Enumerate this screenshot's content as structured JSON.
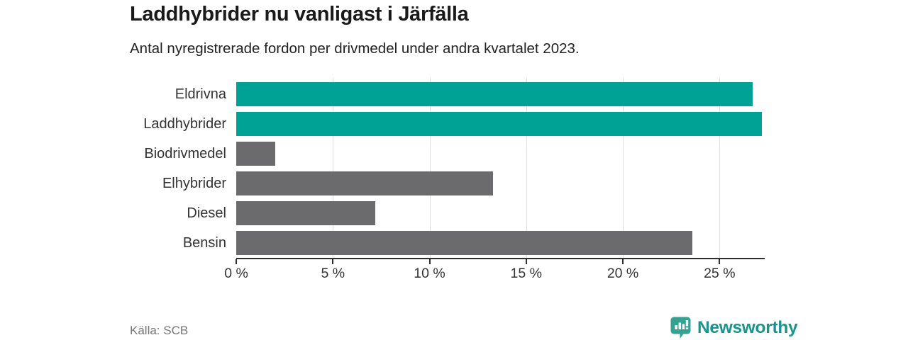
{
  "header": {
    "title": "Laddhybrider nu vanligast i Järfälla",
    "subtitle": "Antal nyregistrerade fordon per drivmedel under andra kvartalet 2023."
  },
  "chart_data": {
    "type": "bar",
    "orientation": "horizontal",
    "title": "Laddhybrider nu vanligast i Järfälla",
    "subtitle": "Antal nyregistrerade fordon per drivmedel under andra kvartalet 2023.",
    "categories": [
      "Eldrivna",
      "Laddhybrider",
      "Biodrivmedel",
      "Elhybrider",
      "Diesel",
      "Bensin"
    ],
    "values": [
      26.7,
      27.2,
      2.0,
      13.3,
      7.2,
      23.6
    ],
    "unit": "%",
    "bar_colors": [
      "#00a296",
      "#00a296",
      "#6b6b6e",
      "#6b6b6e",
      "#6b6b6e",
      "#6b6b6e"
    ],
    "highlight_color": "#00a296",
    "default_color": "#6b6b6e",
    "x_ticks": [
      0,
      5,
      10,
      15,
      20,
      25
    ],
    "x_tick_labels": [
      "0 %",
      "5 %",
      "10 %",
      "15 %",
      "20 %",
      "25 %"
    ],
    "xlim": [
      0,
      27.3
    ],
    "grid": true,
    "legend": false,
    "xlabel": "",
    "ylabel": ""
  },
  "footer": {
    "source": "Källa: SCB",
    "brand": "Newsworthy"
  },
  "colors": {
    "teal_bar": "#00a296",
    "gray_bar": "#6b6b6e",
    "gridline": "#e1e1e1",
    "axis_line": "#2e2e2e",
    "title_text": "#1a1a1a",
    "label_text": "#333333",
    "source_text": "#757575",
    "brand_teal": "#17948c",
    "logo_icon_teal": "#35a193"
  }
}
